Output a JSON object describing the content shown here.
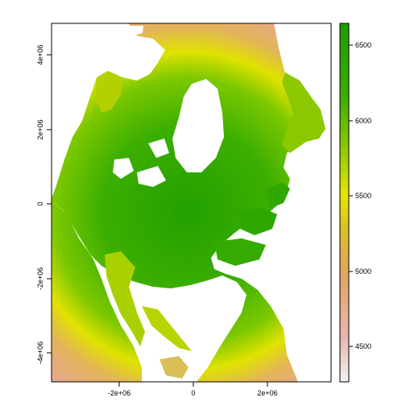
{
  "chart_data": {
    "type": "heatmap",
    "title": "",
    "xlabel": "",
    "ylabel": "",
    "x_ticks": [
      "-2e+06",
      "0",
      "2e+06"
    ],
    "y_ticks": [
      "-4e+06",
      "-2e+06",
      "0",
      "2e+06",
      "4e+06"
    ],
    "xlim": [
      -3800000,
      3700000
    ],
    "ylim": [
      -4800000,
      4900000
    ],
    "colorbar": {
      "ticks": [
        "4500",
        "5000",
        "5500",
        "6000",
        "6500"
      ],
      "range": [
        4250,
        6650
      ],
      "palette": "terrain (green-yellow-tan-white)"
    },
    "grid": false,
    "legend": "right"
  },
  "colors": {
    "max": "#22A000",
    "high": "#5AC000",
    "mid": "#E3E300",
    "low": "#E5B070",
    "min": "#F2F2F2"
  }
}
